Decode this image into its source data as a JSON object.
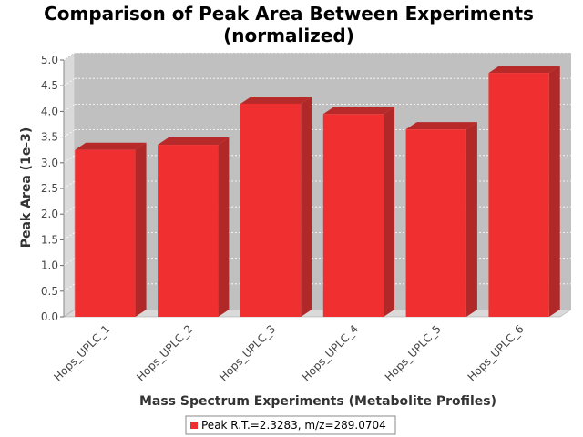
{
  "chart_data": {
    "type": "bar",
    "title_line1": "Comparison of Peak Area Between Experiments",
    "title_line2": "(normalized)",
    "xlabel": "Mass Spectrum Experiments (Metabolite Profiles)",
    "ylabel": "Peak Area (1e-3)",
    "categories": [
      "Hops_UPLC_1",
      "Hops_UPLC_2",
      "Hops_UPLC_3",
      "Hops_UPLC_4",
      "Hops_UPLC_5",
      "Hops_UPLC_6"
    ],
    "series": [
      {
        "name": "Peak R.T.=2.3283, m/z=289.0704",
        "values": [
          3.25,
          3.35,
          4.15,
          3.95,
          3.65,
          4.75
        ]
      }
    ],
    "ylim": [
      0,
      5
    ],
    "yticks": [
      "0.0",
      "0.5",
      "1.0",
      "1.5",
      "2.0",
      "2.5",
      "3.0",
      "3.5",
      "4.0",
      "4.5",
      "5.0"
    ],
    "grid": true,
    "legend_position": "bottom",
    "colors": {
      "bar_front": "#f03030",
      "bar_top": "#b82a2a",
      "bar_side": "#b02828",
      "plot_bg": "#c0c0c0",
      "plot_wall": "#dadada",
      "grid": "#ffffff"
    }
  }
}
